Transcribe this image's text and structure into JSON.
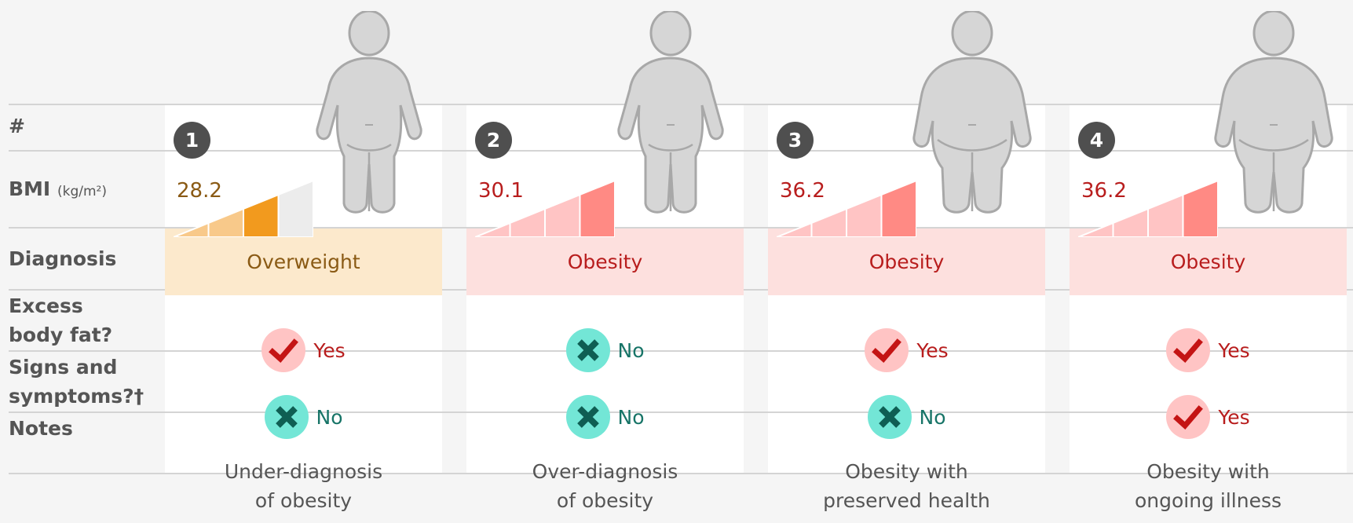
{
  "row_labels": {
    "number": "#",
    "bmi": "BMI",
    "bmi_unit": "(kg/m²)",
    "diagnosis": "Diagnosis",
    "excess_fat": [
      "Excess",
      "body fat?"
    ],
    "signs": [
      "Signs and",
      "symptoms?†"
    ],
    "notes": "Notes"
  },
  "colors": {
    "overweight_bg": "#fce9cc",
    "overweight_text": "#8a5a14",
    "obesity_bg": "#fde0de",
    "obesity_text": "#b81d1d",
    "yes_circle": "#ffc4c4",
    "no_circle": "#73e6d6"
  },
  "cases": [
    {
      "num": "1",
      "bmi": "28.2",
      "diagnosis": "Overweight",
      "diag_kind": "overweight",
      "bmi_level": 3,
      "bmi_palette": "orange",
      "excess_fat": "Yes",
      "signs": "No",
      "note": [
        "Under-diagnosis",
        "of obesity"
      ],
      "body": "slim"
    },
    {
      "num": "2",
      "bmi": "30.1",
      "diagnosis": "Obesity",
      "diag_kind": "obesity",
      "bmi_level": 4,
      "bmi_palette": "red",
      "excess_fat": "No",
      "signs": "No",
      "note": [
        "Over-diagnosis",
        "of obesity"
      ],
      "body": "slim"
    },
    {
      "num": "3",
      "bmi": "36.2",
      "diagnosis": "Obesity",
      "diag_kind": "obesity",
      "bmi_level": 4,
      "bmi_palette": "red",
      "excess_fat": "Yes",
      "signs": "No",
      "note": [
        "Obesity with",
        "preserved health"
      ],
      "body": "large"
    },
    {
      "num": "4",
      "bmi": "36.2",
      "diagnosis": "Obesity",
      "diag_kind": "obesity",
      "bmi_level": 4,
      "bmi_palette": "red",
      "excess_fat": "Yes",
      "signs": "Yes",
      "note": [
        "Obesity with",
        "ongoing illness"
      ],
      "body": "large"
    }
  ]
}
